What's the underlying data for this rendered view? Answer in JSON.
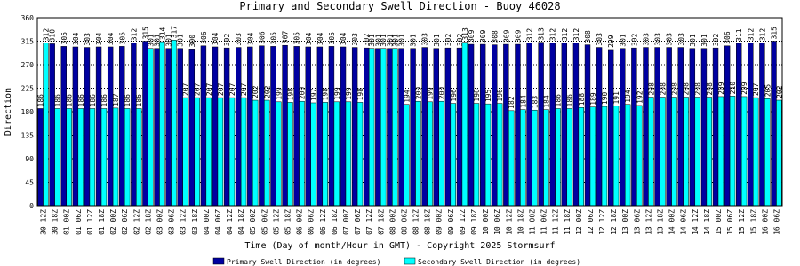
{
  "chart_data": {
    "type": "bar",
    "title": "Primary and Secondary Swell Direction - Buoy 46028",
    "x_label": "Time (Day of month/Hour in GMT) - Copyright 2025 Stormsurf",
    "y_label": "Direction",
    "categories": [
      "30 12Z",
      "30 18Z",
      "01 00Z",
      "01 06Z",
      "01 12Z",
      "01 18Z",
      "02 00Z",
      "02 06Z",
      "02 12Z",
      "02 18Z",
      "03 00Z",
      "03 06Z",
      "03 12Z",
      "03 18Z",
      "04 00Z",
      "04 06Z",
      "04 12Z",
      "04 18Z",
      "05 00Z",
      "05 06Z",
      "05 12Z",
      "05 18Z",
      "06 00Z",
      "06 06Z",
      "06 12Z",
      "06 18Z",
      "07 00Z",
      "07 06Z",
      "07 12Z",
      "07 18Z",
      "08 00Z",
      "08 06Z",
      "08 12Z",
      "08 18Z",
      "09 00Z",
      "09 06Z",
      "09 12Z",
      "09 18Z",
      "10 00Z",
      "10 06Z",
      "10 12Z",
      "10 18Z",
      "11 00Z",
      "11 06Z",
      "11 12Z",
      "11 18Z",
      "12 00Z",
      "12 06Z",
      "12 12Z",
      "12 18Z",
      "13 00Z",
      "13 06Z",
      "13 12Z",
      "13 18Z",
      "14 00Z",
      "14 06Z",
      "14 12Z",
      "14 18Z",
      "15 00Z",
      "15 06Z",
      "15 12Z",
      "15 18Z",
      "16 00Z",
      "16 06Z"
    ],
    "series": [
      {
        "name": "Primary Swell Direction (in degrees)",
        "color": "#0000a0",
        "values": [
          186,
          310,
          305,
          304,
          303,
          304,
          304,
          305,
          312,
          315,
          301,
          301,
          301,
          300,
          306,
          304,
          302,
          303,
          304,
          306,
          305,
          307,
          305,
          304,
          304,
          305,
          304,
          303,
          302,
          301,
          301,
          301,
          301,
          303,
          301,
          302,
          302,
          309,
          309,
          308,
          309,
          309,
          312,
          313,
          312,
          312,
          312,
          308,
          303,
          299,
          301,
          302,
          303,
          303,
          303,
          303,
          301,
          301,
          302,
          306,
          311,
          312,
          312,
          315
        ]
      },
      {
        "name": "Secondary Swell Direction (in degrees)",
        "color": "#00ffff",
        "values": [
          312,
          186,
          186,
          186,
          186,
          186,
          187,
          186,
          186,
          301,
          314,
          317,
          207,
          207,
          207,
          207,
          207,
          207,
          202,
          202,
          199,
          198,
          200,
          197,
          198,
          199,
          199,
          198,
          301,
          301,
          301,
          194,
          200,
          199,
          200,
          196,
          313,
          196,
          195,
          196,
          182,
          184,
          183,
          184,
          186,
          186,
          188,
          189,
          190,
          191,
          194,
          192,
          208,
          208,
          208,
          208,
          208,
          208,
          209,
          210,
          209,
          207,
          205,
          202
        ]
      }
    ],
    "ylim": [
      0,
      360
    ],
    "yticks": [
      0,
      45,
      90,
      135,
      180,
      225,
      270,
      315,
      360
    ],
    "grid": true
  }
}
